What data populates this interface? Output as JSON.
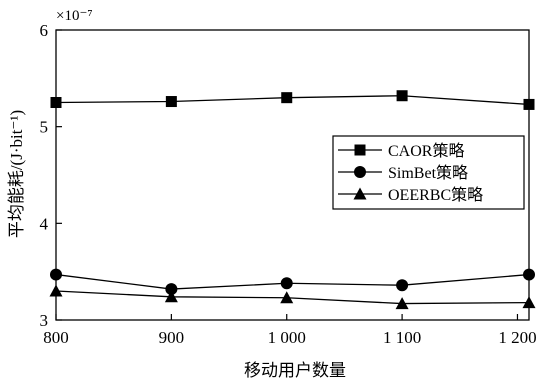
{
  "chart_data": {
    "type": "line",
    "xlabel": "移动用户数量",
    "ylabel": "平均能耗/(J·bit⁻¹)",
    "y_exponent_label": "×10⁻⁷",
    "x": [
      800,
      900,
      1000,
      1100,
      1200
    ],
    "x_tick_labels": [
      "800",
      "900",
      "1 000",
      "1 100",
      "1 200"
    ],
    "xlim": [
      800,
      1210
    ],
    "ylim": [
      3,
      6
    ],
    "y_ticks": [
      3,
      4,
      5,
      6
    ],
    "y_tick_labels": [
      "3",
      "4",
      "5",
      "6"
    ],
    "legend_position": "right",
    "grid": false,
    "series": [
      {
        "name": "CAOR策略",
        "marker": "square",
        "x": [
          800,
          900,
          1000,
          1100,
          1210
        ],
        "values": [
          5.25,
          5.26,
          5.3,
          5.32,
          5.23
        ]
      },
      {
        "name": "SimBet策略",
        "marker": "circle",
        "x": [
          800,
          900,
          1000,
          1100,
          1210
        ],
        "values": [
          3.47,
          3.32,
          3.38,
          3.36,
          3.47
        ]
      },
      {
        "name": "OEERBC策略",
        "marker": "triangle",
        "x": [
          800,
          900,
          1000,
          1100,
          1210
        ],
        "values": [
          3.3,
          3.24,
          3.23,
          3.17,
          3.18
        ]
      }
    ]
  }
}
